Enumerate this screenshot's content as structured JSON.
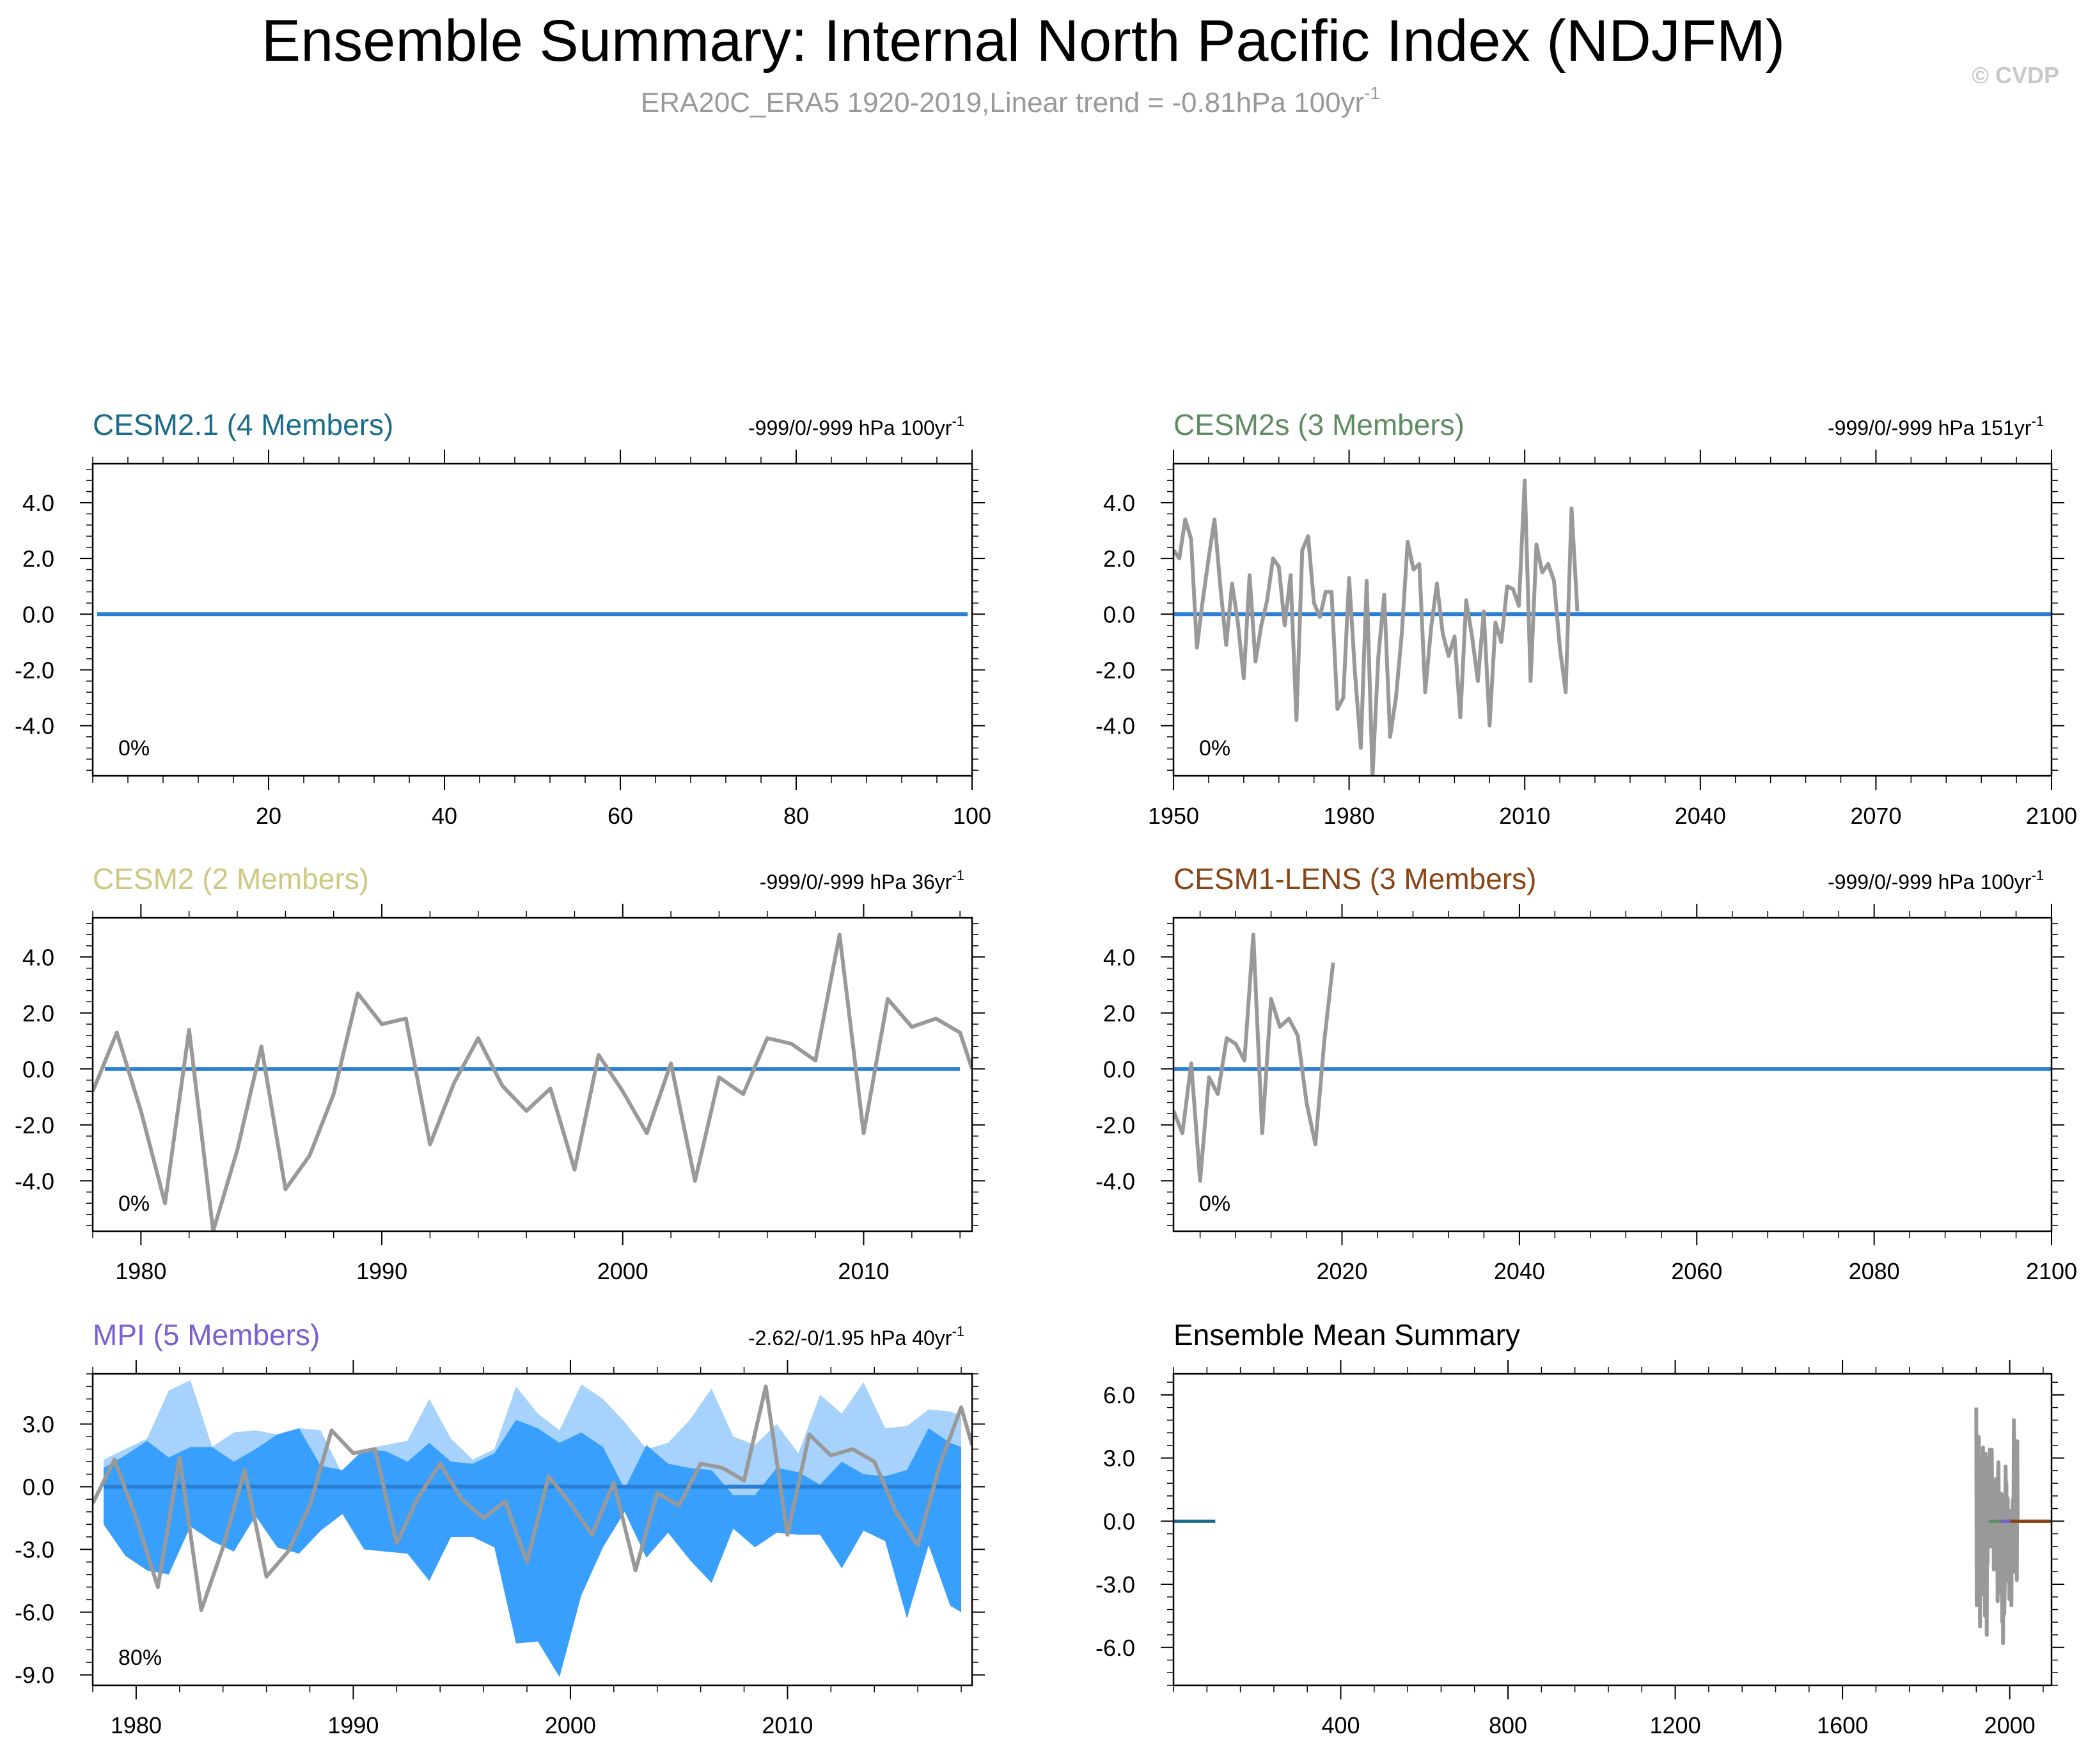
{
  "header": {
    "title": "Ensemble Summary: Internal North Pacific Index (NDJFM)",
    "subtitle": "ERA20C_ERA5 1920-2019,Linear trend = -0.81hPa 100yr",
    "subtitle_sup": "-1",
    "copyright": "© CVDP"
  },
  "colors": {
    "obs": "#999999",
    "zero_line": "#2a7fd4",
    "spread_outer": "#a6d2fc",
    "spread_inner": "#38a0fc",
    "cesm21": "#1a6c8a",
    "cesm2s": "#5f8c62",
    "cesm2": "#cfc882",
    "cesm1lens": "#8a4516",
    "mpi": "#7b5fd0"
  },
  "chart_data": [
    {
      "id": "cesm21",
      "type": "line",
      "title": "CESM2.1 (4 Members)",
      "trend_text": "-999/0/-999 hPa 100yr",
      "trend_sup": "-1",
      "pct_text": "0%",
      "xlim": [
        0,
        100
      ],
      "ylim": [
        -5.8,
        5.4
      ],
      "xticks": [
        20,
        40,
        60,
        80,
        100
      ],
      "xticklabels": [
        "20",
        "40",
        "60",
        "80",
        "100"
      ],
      "yticks": [
        4,
        2,
        0,
        -2,
        -4
      ],
      "yticklabels": [
        "4.0",
        "2.0",
        "0.0",
        "-2.0",
        "-4.0"
      ],
      "ensemble_mean": {
        "x": [
          0.5,
          99.5
        ],
        "y": [
          0,
          0
        ]
      },
      "obs": null,
      "spread": null
    },
    {
      "id": "cesm2s",
      "type": "line",
      "title": "CESM2s (3 Members)",
      "trend_text": "-999/0/-999 hPa 151yr",
      "trend_sup": "-1",
      "pct_text": "0%",
      "xlim": [
        1950,
        2100
      ],
      "ylim": [
        -5.8,
        5.4
      ],
      "xticks": [
        1950,
        1980,
        2010,
        2040,
        2070,
        2100
      ],
      "xticklabels": [
        "1950",
        "1980",
        "2010",
        "2040",
        "2070",
        "2100"
      ],
      "yticks": [
        4,
        2,
        0,
        -2,
        -4
      ],
      "yticklabels": [
        "4.0",
        "2.0",
        "0.0",
        "-2.0",
        "-4.0"
      ],
      "ensemble_mean": {
        "x": [
          1950,
          2100
        ],
        "y": [
          0,
          0
        ]
      },
      "obs": {
        "x": [
          1950,
          1951,
          1952,
          1953,
          1954,
          1955,
          1956,
          1957,
          1958,
          1959,
          1960,
          1961,
          1962,
          1963,
          1964,
          1965,
          1966,
          1967,
          1968,
          1969,
          1970,
          1971,
          1972,
          1973,
          1974,
          1975,
          1976,
          1977,
          1978,
          1979,
          1980,
          1981,
          1982,
          1983,
          1984,
          1985,
          1986,
          1987,
          1988,
          1989,
          1990,
          1991,
          1992,
          1993,
          1994,
          1995,
          1996,
          1997,
          1998,
          1999,
          2000,
          2001,
          2002,
          2003,
          2004,
          2005,
          2006,
          2007,
          2008,
          2009,
          2010,
          2011,
          2012,
          2013,
          2014,
          2015,
          2016,
          2017,
          2018,
          2019
        ],
        "y": [
          2.3,
          2.0,
          3.4,
          2.7,
          -1.2,
          0.5,
          2.0,
          3.4,
          1.0,
          -1.1,
          1.1,
          -0.3,
          -2.3,
          1.4,
          -1.7,
          -0.4,
          0.5,
          2.0,
          1.7,
          -0.4,
          1.4,
          -3.8,
          2.3,
          2.8,
          0.4,
          -0.1,
          0.8,
          0.8,
          -3.4,
          -3.0,
          1.3,
          -2.1,
          -4.8,
          1.2,
          -5.8,
          -1.5,
          0.7,
          -4.4,
          -3.0,
          -0.7,
          2.6,
          1.6,
          1.8,
          -2.8,
          -0.5,
          1.1,
          -0.7,
          -1.5,
          -0.8,
          -3.7,
          0.5,
          -0.8,
          -2.4,
          0.1,
          -4.0,
          -0.3,
          -1.0,
          1.0,
          0.9,
          0.3,
          4.8,
          -2.4,
          2.5,
          1.5,
          1.8,
          1.2,
          -1.2,
          -2.8,
          3.8,
          0.1
        ]
      },
      "spread": null
    },
    {
      "id": "cesm2",
      "type": "line",
      "title": "CESM2 (2 Members)",
      "trend_text": "-999/0/-999 hPa 36yr",
      "trend_sup": "-1",
      "pct_text": "0%",
      "xlim": [
        1978,
        2014.5
      ],
      "ylim": [
        -5.8,
        5.4
      ],
      "xticks": [
        1980,
        1990,
        2000,
        2010
      ],
      "xticklabels": [
        "1980",
        "1990",
        "2000",
        "2010"
      ],
      "yticks": [
        4,
        2,
        0,
        -2,
        -4
      ],
      "yticklabels": [
        "4.0",
        "2.0",
        "0.0",
        "-2.0",
        "-4.0"
      ],
      "ensemble_mean": {
        "x": [
          1978.5,
          2014
        ],
        "y": [
          0,
          0
        ]
      },
      "obs": {
        "x": [
          1978,
          1979,
          1980,
          1981,
          1982,
          1983,
          1984,
          1985,
          1986,
          1987,
          1988,
          1989,
          1990,
          1991,
          1992,
          1993,
          1994,
          1995,
          1996,
          1997,
          1998,
          1999,
          2000,
          2001,
          2002,
          2003,
          2004,
          2005,
          2006,
          2007,
          2008,
          2009,
          2010,
          2011,
          2012,
          2013,
          2014,
          2014.5
        ],
        "y": [
          -0.8,
          1.3,
          -1.5,
          -4.8,
          1.4,
          -5.8,
          -2.9,
          0.8,
          -4.3,
          -3.1,
          -0.9,
          2.7,
          1.6,
          1.8,
          -2.7,
          -0.5,
          1.1,
          -0.6,
          -1.5,
          -0.7,
          -3.6,
          0.5,
          -0.8,
          -2.3,
          0.2,
          -4.0,
          -0.3,
          -0.9,
          1.1,
          0.9,
          0.3,
          4.8,
          -2.3,
          2.5,
          1.5,
          1.8,
          1.3,
          0.0
        ]
      },
      "spread": null
    },
    {
      "id": "cesm1lens",
      "type": "line",
      "title": "CESM1-LENS (3 Members)",
      "trend_text": "-999/0/-999 hPa 100yr",
      "trend_sup": "-1",
      "pct_text": "0%",
      "xlim": [
        2001,
        2100
      ],
      "ylim": [
        -5.8,
        5.4
      ],
      "xticks": [
        2020,
        2040,
        2060,
        2080,
        2100
      ],
      "xticklabels": [
        "2020",
        "2040",
        "2060",
        "2080",
        "2100"
      ],
      "yticks": [
        4,
        2,
        0,
        -2,
        -4
      ],
      "yticklabels": [
        "4.0",
        "2.0",
        "0.0",
        "-2.0",
        "-4.0"
      ],
      "ensemble_mean": {
        "x": [
          2001,
          2100
        ],
        "y": [
          0,
          0
        ]
      },
      "obs": {
        "x": [
          2001,
          2002,
          2003,
          2004,
          2005,
          2006,
          2007,
          2008,
          2009,
          2010,
          2011,
          2012,
          2013,
          2014,
          2015,
          2016,
          2017,
          2018,
          2019
        ],
        "y": [
          -1.5,
          -2.3,
          0.2,
          -4.0,
          -0.3,
          -0.9,
          1.1,
          0.9,
          0.3,
          4.8,
          -2.3,
          2.5,
          1.5,
          1.8,
          1.2,
          -1.2,
          -2.7,
          1.0,
          3.8
        ]
      },
      "spread": null
    },
    {
      "id": "mpi",
      "type": "area",
      "title": "MPI (5 Members)",
      "trend_text": "-2.62/-0/1.95 hPa 40yr",
      "trend_sup": "-1",
      "pct_text": "80%",
      "xlim": [
        1978,
        2018.5
      ],
      "ylim": [
        -9.5,
        5.4
      ],
      "xticks": [
        1980,
        1990,
        2000,
        2010
      ],
      "xticklabels": [
        "1980",
        "1990",
        "2000",
        "2010"
      ],
      "yticks": [
        3,
        0,
        -3,
        -6,
        -9
      ],
      "yticklabels": [
        "3.0",
        "0.0",
        "-3.0",
        "-6.0",
        "-9.0"
      ],
      "ensemble_mean": {
        "x": [
          1978.5,
          2018
        ],
        "y": [
          0,
          0
        ]
      },
      "obs": {
        "x": [
          1978,
          1979,
          1980,
          1981,
          1982,
          1983,
          1984,
          1985,
          1986,
          1987,
          1988,
          1989,
          1990,
          1991,
          1992,
          1993,
          1994,
          1995,
          1996,
          1997,
          1998,
          1999,
          2000,
          2001,
          2002,
          2003,
          2004,
          2005,
          2006,
          2007,
          2008,
          2009,
          2010,
          2011,
          2012,
          2013,
          2014,
          2015,
          2016,
          2017,
          2018,
          2018.5
        ],
        "y": [
          -0.8,
          1.3,
          -1.5,
          -4.8,
          1.4,
          -5.9,
          -2.9,
          0.8,
          -4.3,
          -3.1,
          -0.9,
          2.7,
          1.6,
          1.8,
          -2.7,
          -0.5,
          1.1,
          -0.6,
          -1.5,
          -0.7,
          -3.6,
          0.5,
          -0.8,
          -2.3,
          0.2,
          -4.0,
          -0.3,
          -0.9,
          1.1,
          0.9,
          0.3,
          4.8,
          -2.3,
          2.5,
          1.5,
          1.8,
          1.2,
          -1.2,
          -2.8,
          1.0,
          3.8,
          2.0
        ]
      },
      "spread": {
        "x": [
          1978.5,
          1979.5,
          1980.5,
          1981.5,
          1982.5,
          1983.5,
          1984.5,
          1985.5,
          1986.5,
          1987.5,
          1988.5,
          1989.5,
          1990.5,
          1991.5,
          1992.5,
          1993.5,
          1994.5,
          1995.5,
          1996.5,
          1997.5,
          1998.5,
          1999.5,
          2000.5,
          2001.5,
          2002.5,
          2003.5,
          2004.5,
          2005.5,
          2006.5,
          2007.5,
          2008.5,
          2009.5,
          2010.5,
          2011.5,
          2012.5,
          2013.5,
          2014.5,
          2015.5,
          2016.5,
          2017.5,
          2018.0
        ],
        "outer_hi": [
          1.3,
          1.8,
          2.3,
          4.6,
          5.1,
          1.9,
          2.6,
          2.7,
          2.5,
          2.8,
          2.7,
          0.6,
          1.8,
          2.0,
          2.2,
          4.2,
          2.3,
          1.3,
          1.8,
          4.8,
          3.5,
          2.7,
          4.9,
          4.2,
          3.1,
          1.8,
          2.1,
          3.2,
          4.7,
          2.4,
          2.0,
          3.0,
          1.6,
          4.4,
          3.5,
          5.0,
          2.8,
          2.9,
          3.7,
          3.6,
          3.4
        ],
        "inner_hi": [
          0.9,
          1.5,
          2.2,
          1.4,
          1.9,
          1.9,
          1.2,
          1.8,
          2.5,
          2.8,
          1.0,
          0.8,
          1.8,
          1.7,
          1.2,
          2.1,
          1.2,
          1.1,
          1.6,
          3.2,
          2.8,
          2.1,
          2.6,
          1.9,
          -0.1,
          2.0,
          1.1,
          0.9,
          0.8,
          -0.4,
          -0.4,
          0.9,
          0.7,
          0.1,
          1.2,
          0.6,
          0.5,
          0.8,
          2.8,
          2.1,
          1.9
        ],
        "inner_lo": [
          -1.8,
          -3.3,
          -4.0,
          -4.2,
          -1.9,
          -2.6,
          -3.1,
          -1.4,
          -2.9,
          -3.2,
          -2.1,
          -1.3,
          -3.0,
          -3.1,
          -3.2,
          -4.5,
          -2.4,
          -2.4,
          -2.9,
          -7.5,
          -7.4,
          -9.1,
          -5.2,
          -2.9,
          -1.2,
          -3.4,
          -2.2,
          -3.5,
          -4.6,
          -2.0,
          -2.9,
          -2.2,
          -2.3,
          -2.3,
          -3.9,
          -2.1,
          -2.6,
          -6.3,
          -2.8,
          -5.7,
          -6.0
        ],
        "outer_lo": [
          -1.8,
          -3.3,
          -4.0,
          -4.2,
          -1.9,
          -2.6,
          -3.1,
          -1.4,
          -2.9,
          -3.2,
          -2.1,
          -1.3,
          -3.0,
          -3.1,
          -3.2,
          -4.5,
          -2.4,
          -2.4,
          -2.9,
          -7.5,
          -7.4,
          -9.1,
          -5.2,
          -2.9,
          -1.2,
          -3.4,
          -2.2,
          -3.5,
          -4.6,
          -2.0,
          -2.9,
          -2.2,
          -2.3,
          -2.3,
          -3.9,
          -2.1,
          -2.6,
          -6.3,
          -2.8,
          -5.7,
          -6.0
        ]
      }
    },
    {
      "id": "summary",
      "type": "line",
      "title": "Ensemble Mean Summary",
      "trend_text": "",
      "trend_sup": "",
      "pct_text": "",
      "xlim": [
        0,
        2100
      ],
      "ylim": [
        -7.8,
        7.0
      ],
      "xticks": [
        400,
        800,
        1200,
        1600,
        2000
      ],
      "xticklabels": [
        "400",
        "800",
        "1200",
        "1600",
        "2000"
      ],
      "yticks": [
        6,
        3,
        0,
        -3,
        -6
      ],
      "yticklabels": [
        "6.0",
        "3.0",
        "0.0",
        "-3.0",
        "-6.0"
      ],
      "segments": [
        {
          "name": "CESM2.1",
          "color_key": "cesm21",
          "x": [
            0,
            100
          ],
          "y": [
            0,
            0
          ]
        },
        {
          "name": "CESM2s",
          "color_key": "cesm2s",
          "x": [
            1950,
            2100
          ],
          "y": [
            0,
            0
          ]
        },
        {
          "name": "MPI",
          "color_key": "mpi",
          "x": [
            1979,
            2018
          ],
          "y": [
            0,
            0
          ]
        },
        {
          "name": "CESM1-LENS",
          "color_key": "cesm1lens",
          "x": [
            2001,
            2100
          ],
          "y": [
            0,
            0
          ]
        }
      ],
      "obs": {
        "x": [
          1920,
          1921,
          1922,
          1923,
          1924,
          1925,
          1926,
          1927,
          1928,
          1929,
          1930,
          1931,
          1932,
          1933,
          1934,
          1935,
          1936,
          1937,
          1938,
          1939,
          1940,
          1941,
          1942,
          1943,
          1944,
          1945,
          1946,
          1947,
          1948,
          1949,
          1950,
          1951,
          1952,
          1953,
          1954,
          1955,
          1956,
          1957,
          1958,
          1959,
          1960,
          1961,
          1962,
          1963,
          1964,
          1965,
          1966,
          1967,
          1968,
          1969,
          1970,
          1971,
          1972,
          1973,
          1974,
          1975,
          1976,
          1977,
          1978,
          1979,
          1980,
          1981,
          1982,
          1983,
          1984,
          1985,
          1986,
          1987,
          1988,
          1989,
          1990,
          1991,
          1992,
          1993,
          1994,
          1995,
          1996,
          1997,
          1998,
          1999,
          2000,
          2001,
          2002,
          2003,
          2004,
          2005,
          2006,
          2007,
          2008,
          2009,
          2010,
          2011,
          2012,
          2013,
          2014,
          2015,
          2016,
          2017,
          2018,
          2019
        ],
        "y": [
          5.4,
          -4.0,
          2.5,
          -1.0,
          3.5,
          -2.0,
          4.0,
          -1.5,
          2.0,
          -5.0,
          3.0,
          -0.5,
          1.5,
          -3.5,
          2.6,
          -1.8,
          3.5,
          -2.5,
          0.8,
          -3.0,
          1.7,
          -4.5,
          3.2,
          -1.0,
          2.2,
          -5.4,
          1.0,
          -2.0,
          3.0,
          -1.2,
          2.3,
          2.0,
          3.4,
          2.7,
          -1.2,
          0.5,
          2.0,
          3.4,
          1.0,
          -1.1,
          1.1,
          -0.3,
          -2.3,
          1.4,
          -1.7,
          -0.4,
          0.5,
          2.0,
          1.7,
          -0.4,
          1.4,
          -3.8,
          2.3,
          2.8,
          0.4,
          -0.1,
          0.8,
          0.8,
          -3.4,
          -3.0,
          1.3,
          -2.1,
          -4.8,
          1.2,
          -5.8,
          -1.5,
          0.7,
          -4.4,
          -3.0,
          -0.7,
          2.6,
          1.6,
          1.8,
          -2.8,
          -0.5,
          1.1,
          -0.7,
          -1.5,
          -0.8,
          -3.7,
          0.5,
          -0.8,
          -2.4,
          0.1,
          -4.0,
          -0.3,
          -1.0,
          1.0,
          0.9,
          0.3,
          4.8,
          -2.4,
          2.5,
          1.5,
          1.8,
          1.2,
          -1.2,
          -2.8,
          3.8,
          0.1
        ]
      },
      "spread": null
    }
  ]
}
